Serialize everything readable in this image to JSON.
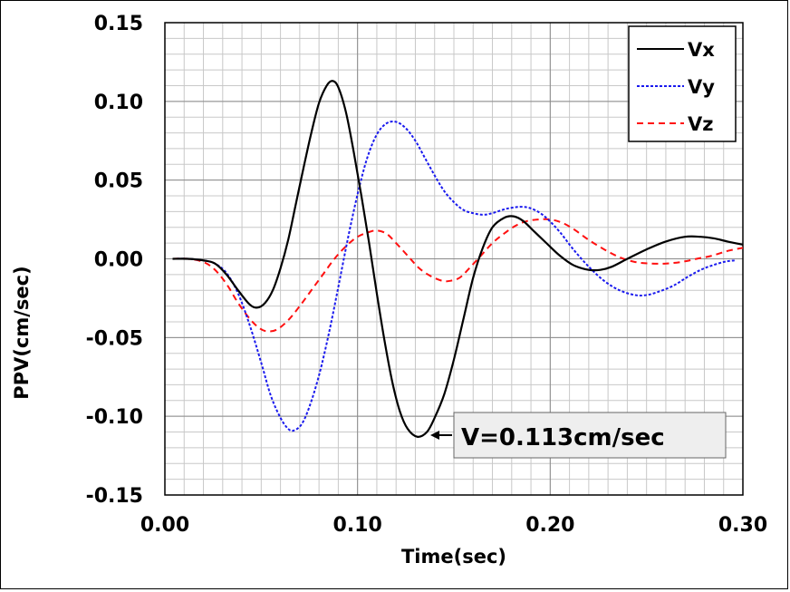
{
  "chart_data": {
    "type": "line",
    "title": "",
    "xlabel": "Time(sec)",
    "ylabel": "PPV(cm/sec)",
    "xlim": [
      0.0,
      0.3
    ],
    "ylim": [
      -0.15,
      0.15
    ],
    "x_major_ticks": [
      0.0,
      0.1,
      0.2,
      0.3
    ],
    "x_tick_labels": [
      "0.00",
      "0.10",
      "0.20",
      "0.30"
    ],
    "x_minor_step": 0.01,
    "y_major_ticks": [
      -0.15,
      -0.1,
      -0.05,
      0.0,
      0.05,
      0.1,
      0.15
    ],
    "y_tick_labels": [
      "-0.15",
      "-0.10",
      "-0.05",
      "0.00",
      "0.05",
      "0.10",
      "0.15"
    ],
    "y_minor_step": 0.01,
    "grid": true,
    "legend_position": "top-right",
    "series": [
      {
        "name": "Vx",
        "color": "#000000",
        "dash": "solid",
        "points": [
          [
            0.004,
            0.0
          ],
          [
            0.012,
            0.0
          ],
          [
            0.02,
            -0.001
          ],
          [
            0.026,
            -0.003
          ],
          [
            0.032,
            -0.01
          ],
          [
            0.038,
            -0.02
          ],
          [
            0.044,
            -0.029
          ],
          [
            0.048,
            -0.031
          ],
          [
            0.052,
            -0.028
          ],
          [
            0.056,
            -0.02
          ],
          [
            0.06,
            -0.006
          ],
          [
            0.064,
            0.012
          ],
          [
            0.068,
            0.035
          ],
          [
            0.072,
            0.058
          ],
          [
            0.076,
            0.08
          ],
          [
            0.08,
            0.099
          ],
          [
            0.084,
            0.11
          ],
          [
            0.087,
            0.113
          ],
          [
            0.09,
            0.109
          ],
          [
            0.094,
            0.093
          ],
          [
            0.098,
            0.068
          ],
          [
            0.102,
            0.04
          ],
          [
            0.106,
            0.01
          ],
          [
            0.11,
            -0.022
          ],
          [
            0.114,
            -0.052
          ],
          [
            0.118,
            -0.078
          ],
          [
            0.122,
            -0.097
          ],
          [
            0.126,
            -0.108
          ],
          [
            0.131,
            -0.113
          ],
          [
            0.136,
            -0.11
          ],
          [
            0.14,
            -0.101
          ],
          [
            0.145,
            -0.086
          ],
          [
            0.15,
            -0.064
          ],
          [
            0.155,
            -0.038
          ],
          [
            0.16,
            -0.012
          ],
          [
            0.165,
            0.007
          ],
          [
            0.17,
            0.02
          ],
          [
            0.176,
            0.026
          ],
          [
            0.181,
            0.027
          ],
          [
            0.186,
            0.024
          ],
          [
            0.192,
            0.017
          ],
          [
            0.198,
            0.01
          ],
          [
            0.205,
            0.002
          ],
          [
            0.212,
            -0.004
          ],
          [
            0.22,
            -0.007
          ],
          [
            0.226,
            -0.007
          ],
          [
            0.232,
            -0.005
          ],
          [
            0.24,
            0.0
          ],
          [
            0.25,
            0.006
          ],
          [
            0.26,
            0.011
          ],
          [
            0.27,
            0.014
          ],
          [
            0.278,
            0.014
          ],
          [
            0.285,
            0.013
          ],
          [
            0.292,
            0.011
          ],
          [
            0.3,
            0.009
          ]
        ]
      },
      {
        "name": "Vy",
        "color": "#1a1aee",
        "dash": "dotted",
        "points": [
          [
            0.004,
            0.0
          ],
          [
            0.012,
            0.0
          ],
          [
            0.02,
            -0.001
          ],
          [
            0.026,
            -0.003
          ],
          [
            0.032,
            -0.009
          ],
          [
            0.038,
            -0.022
          ],
          [
            0.044,
            -0.042
          ],
          [
            0.05,
            -0.066
          ],
          [
            0.055,
            -0.087
          ],
          [
            0.06,
            -0.101
          ],
          [
            0.064,
            -0.108
          ],
          [
            0.067,
            -0.109
          ],
          [
            0.071,
            -0.105
          ],
          [
            0.075,
            -0.094
          ],
          [
            0.08,
            -0.074
          ],
          [
            0.085,
            -0.048
          ],
          [
            0.09,
            -0.018
          ],
          [
            0.095,
            0.013
          ],
          [
            0.1,
            0.041
          ],
          [
            0.105,
            0.064
          ],
          [
            0.11,
            0.079
          ],
          [
            0.115,
            0.086
          ],
          [
            0.12,
            0.087
          ],
          [
            0.125,
            0.083
          ],
          [
            0.13,
            0.075
          ],
          [
            0.135,
            0.064
          ],
          [
            0.14,
            0.053
          ],
          [
            0.145,
            0.043
          ],
          [
            0.15,
            0.036
          ],
          [
            0.155,
            0.031
          ],
          [
            0.16,
            0.029
          ],
          [
            0.165,
            0.028
          ],
          [
            0.17,
            0.029
          ],
          [
            0.178,
            0.032
          ],
          [
            0.186,
            0.033
          ],
          [
            0.192,
            0.031
          ],
          [
            0.198,
            0.026
          ],
          [
            0.205,
            0.017
          ],
          [
            0.212,
            0.006
          ],
          [
            0.22,
            -0.005
          ],
          [
            0.228,
            -0.014
          ],
          [
            0.236,
            -0.02
          ],
          [
            0.244,
            -0.023
          ],
          [
            0.25,
            -0.023
          ],
          [
            0.256,
            -0.021
          ],
          [
            0.264,
            -0.017
          ],
          [
            0.272,
            -0.011
          ],
          [
            0.28,
            -0.006
          ],
          [
            0.29,
            -0.002
          ],
          [
            0.296,
            -0.001
          ]
        ]
      },
      {
        "name": "Vz",
        "color": "#ff1010",
        "dash": "dashed",
        "points": [
          [
            0.004,
            0.0
          ],
          [
            0.012,
            0.0
          ],
          [
            0.02,
            -0.002
          ],
          [
            0.026,
            -0.007
          ],
          [
            0.032,
            -0.016
          ],
          [
            0.038,
            -0.028
          ],
          [
            0.044,
            -0.038
          ],
          [
            0.049,
            -0.044
          ],
          [
            0.053,
            -0.046
          ],
          [
            0.058,
            -0.045
          ],
          [
            0.064,
            -0.039
          ],
          [
            0.07,
            -0.03
          ],
          [
            0.076,
            -0.02
          ],
          [
            0.082,
            -0.01
          ],
          [
            0.088,
            0.0
          ],
          [
            0.094,
            0.008
          ],
          [
            0.1,
            0.014
          ],
          [
            0.106,
            0.017
          ],
          [
            0.11,
            0.018
          ],
          [
            0.115,
            0.016
          ],
          [
            0.12,
            0.01
          ],
          [
            0.126,
            0.002
          ],
          [
            0.132,
            -0.006
          ],
          [
            0.138,
            -0.011
          ],
          [
            0.144,
            -0.014
          ],
          [
            0.148,
            -0.014
          ],
          [
            0.153,
            -0.012
          ],
          [
            0.158,
            -0.006
          ],
          [
            0.164,
            0.002
          ],
          [
            0.17,
            0.01
          ],
          [
            0.176,
            0.016
          ],
          [
            0.182,
            0.021
          ],
          [
            0.188,
            0.024
          ],
          [
            0.194,
            0.025
          ],
          [
            0.2,
            0.025
          ],
          [
            0.206,
            0.023
          ],
          [
            0.212,
            0.019
          ],
          [
            0.22,
            0.012
          ],
          [
            0.228,
            0.006
          ],
          [
            0.236,
            0.001
          ],
          [
            0.244,
            -0.002
          ],
          [
            0.252,
            -0.003
          ],
          [
            0.26,
            -0.003
          ],
          [
            0.268,
            -0.002
          ],
          [
            0.276,
            0.0
          ],
          [
            0.284,
            0.002
          ],
          [
            0.292,
            0.005
          ],
          [
            0.3,
            0.007
          ]
        ]
      }
    ],
    "annotations": [
      {
        "text": "V=0.113cm/sec",
        "points_to": [
          0.131,
          -0.113
        ]
      }
    ]
  }
}
